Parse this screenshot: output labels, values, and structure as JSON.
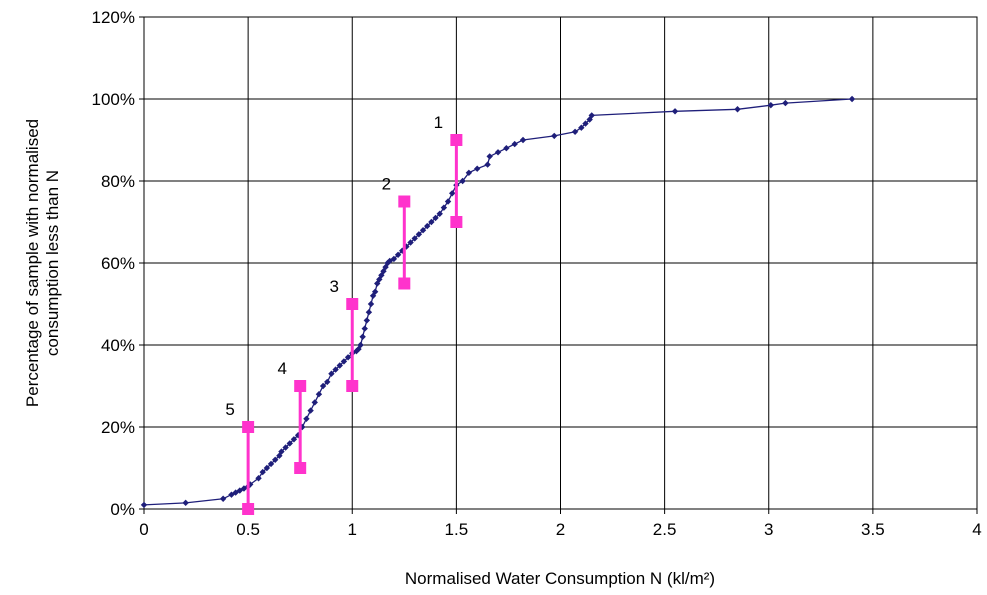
{
  "chart_data": {
    "type": "scatter",
    "title": "",
    "xlabel": "Normalised Water Consumption N (kl/m²)",
    "ylabel_lines": [
      "Percentage of sample with normalised",
      "consumption less than N"
    ],
    "xlim": [
      0,
      4
    ],
    "ylim": [
      0,
      120
    ],
    "x_ticks": [
      0,
      0.5,
      1,
      1.5,
      2,
      2.5,
      3,
      3.5,
      4
    ],
    "x_tick_labels": [
      "0",
      "0.5",
      "1",
      "1.5",
      "2",
      "2.5",
      "3",
      "3.5",
      "4"
    ],
    "y_ticks": [
      0,
      20,
      40,
      60,
      80,
      100,
      120
    ],
    "y_tick_labels": [
      "0%",
      "20%",
      "40%",
      "60%",
      "80%",
      "100%",
      "120%"
    ],
    "grid": true,
    "legend": "none",
    "series": [
      {
        "type": "line-markers",
        "color": "#1f1f7a",
        "x": [
          0.0,
          0.2,
          0.38,
          0.42,
          0.44,
          0.46,
          0.48,
          0.5,
          0.51,
          0.55,
          0.57,
          0.59,
          0.61,
          0.63,
          0.65,
          0.66,
          0.68,
          0.7,
          0.72,
          0.74,
          0.76,
          0.78,
          0.8,
          0.82,
          0.84,
          0.86,
          0.88,
          0.9,
          0.92,
          0.94,
          0.96,
          0.98,
          1.0,
          1.02,
          1.03,
          1.04,
          1.05,
          1.06,
          1.07,
          1.08,
          1.09,
          1.1,
          1.11,
          1.12,
          1.13,
          1.14,
          1.15,
          1.16,
          1.17,
          1.18,
          1.2,
          1.22,
          1.24,
          1.26,
          1.28,
          1.3,
          1.32,
          1.34,
          1.36,
          1.38,
          1.4,
          1.42,
          1.44,
          1.46,
          1.48,
          1.5,
          1.53,
          1.56,
          1.6,
          1.65,
          1.66,
          1.7,
          1.74,
          1.78,
          1.82,
          1.97,
          2.07,
          2.1,
          2.12,
          2.14,
          2.15,
          2.55,
          2.85,
          3.01,
          3.08,
          3.4
        ],
        "y": [
          1,
          1.5,
          2.5,
          3.5,
          4,
          4.5,
          5,
          5.5,
          6,
          7.5,
          9,
          10,
          11,
          12,
          13,
          14,
          15,
          16,
          17,
          18,
          20,
          22,
          24,
          26,
          28,
          30,
          31,
          33,
          34,
          35,
          36,
          37,
          38,
          38.5,
          39,
          40,
          42,
          44,
          46,
          48,
          50,
          52,
          53,
          55,
          56,
          57,
          58,
          59,
          60,
          60.5,
          61,
          62,
          63,
          64,
          65,
          66,
          67,
          68,
          69,
          70,
          71,
          72,
          73.5,
          75,
          77,
          79,
          80,
          82,
          83,
          84,
          86,
          87,
          88,
          89,
          90,
          91,
          92,
          93,
          94,
          95,
          96,
          97,
          97.5,
          98.5,
          99,
          100
        ]
      }
    ],
    "rating_bands": [
      {
        "label": "1",
        "x": 1.5,
        "ymin": 70,
        "ymax": 90,
        "color": "#ff33cc"
      },
      {
        "label": "2",
        "x": 1.25,
        "ymin": 55,
        "ymax": 75,
        "color": "#ff33cc"
      },
      {
        "label": "3",
        "x": 1.0,
        "ymin": 30,
        "ymax": 50,
        "color": "#ff33cc"
      },
      {
        "label": "4",
        "x": 0.75,
        "ymin": 10,
        "ymax": 30,
        "color": "#ff33cc"
      },
      {
        "label": "5",
        "x": 0.5,
        "ymin": 0,
        "ymax": 20,
        "color": "#ff33cc"
      }
    ]
  }
}
